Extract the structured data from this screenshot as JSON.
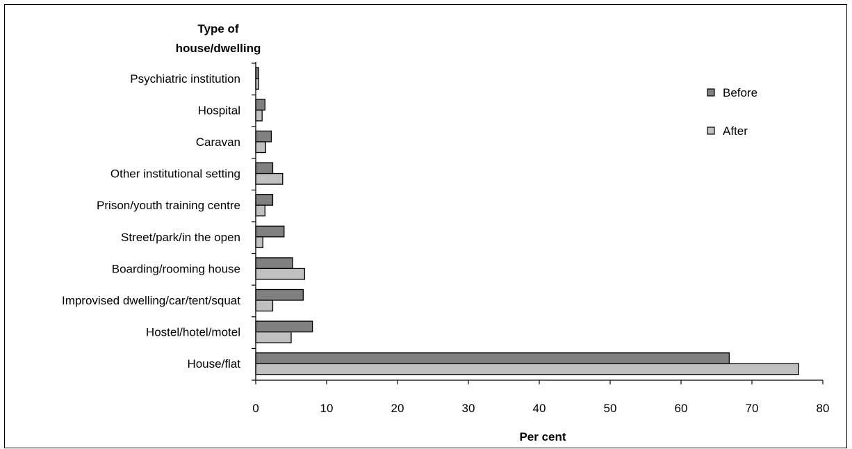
{
  "chart_data": {
    "type": "bar",
    "orientation": "horizontal",
    "title": "Type of house/dwelling",
    "title_lines": [
      "Type of",
      "house/dwelling"
    ],
    "xlabel": "Per cent",
    "categories": [
      "Psychiatric institution",
      "Hospital",
      "Caravan",
      "Other institutional setting",
      "Prison/youth training centre",
      "Street/park/in the open",
      "Boarding/rooming house",
      "Improvised dwelling/car/tent/squat",
      "Hostel/hotel/motel",
      "House/flat"
    ],
    "series": [
      {
        "name": "Before",
        "color": "#808080",
        "values": [
          0.4,
          1.3,
          2.2,
          2.4,
          2.4,
          4.0,
          5.2,
          6.7,
          8.0,
          66.8
        ]
      },
      {
        "name": "After",
        "color": "#c0c0c0",
        "values": [
          0.4,
          0.9,
          1.4,
          3.8,
          1.3,
          1.0,
          6.9,
          2.4,
          5.0,
          76.6
        ]
      }
    ],
    "xlim": [
      0,
      80
    ],
    "xticks": [
      0,
      10,
      20,
      30,
      40,
      50,
      60,
      70,
      80
    ],
    "grid": false,
    "legend": "top-right"
  }
}
